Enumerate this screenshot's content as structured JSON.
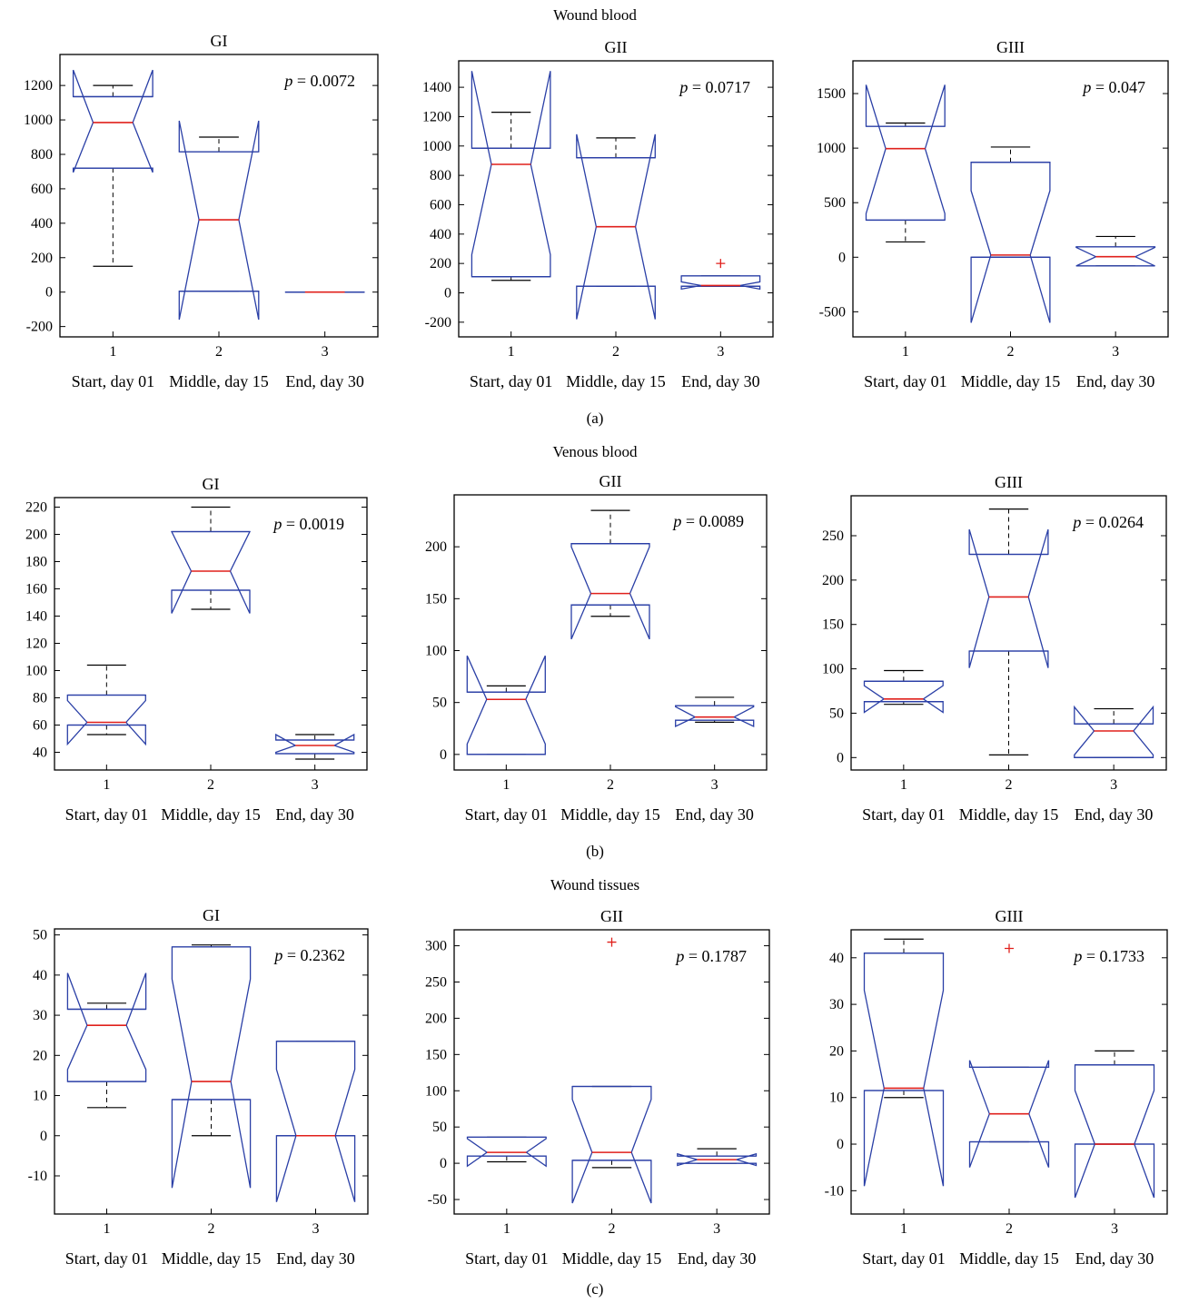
{
  "colors": {
    "box": "#2a3fa6",
    "median": "#e0201c",
    "whisker": "#000000",
    "outlier": "#e0201c",
    "axis": "#000000"
  },
  "x_categories": [
    "Start, day 01",
    "Middle, day 15",
    "End, day 30"
  ],
  "x_ticks": [
    "1",
    "2",
    "3"
  ],
  "sections": [
    {
      "title": "Wound blood",
      "label": "(a)"
    },
    {
      "title": "Venous blood",
      "label": "(b)"
    },
    {
      "title": "Wound tissues",
      "label": "(c)"
    }
  ],
  "chart_data": [
    {
      "type": "boxplot",
      "section": "Wound blood",
      "title": "GI",
      "p_label": "p",
      "p_value": "= 0.0072",
      "ylim": [
        -260,
        1380
      ],
      "yticks": [
        -200,
        0,
        200,
        400,
        600,
        800,
        1000,
        1200
      ],
      "boxes": [
        {
          "q1": 720,
          "median": 985,
          "q3": 1135,
          "notch_lo": 695,
          "notch_hi": 1290,
          "whisker_lo": 150,
          "whisker_hi": 1200,
          "outliers": []
        },
        {
          "q1": 5,
          "median": 420,
          "q3": 815,
          "notch_lo": -160,
          "notch_hi": 995,
          "whisker_lo": 5,
          "whisker_hi": 900,
          "outliers": []
        },
        {
          "q1": 0,
          "median": 0,
          "q3": 0,
          "notch_lo": 0,
          "notch_hi": 0,
          "whisker_lo": 0,
          "whisker_hi": 0,
          "outliers": []
        }
      ]
    },
    {
      "type": "boxplot",
      "section": "Wound blood",
      "title": "GII",
      "p_label": "p",
      "p_value": "= 0.0717",
      "ylim": [
        -300,
        1580
      ],
      "yticks": [
        -200,
        0,
        200,
        400,
        600,
        800,
        1000,
        1200,
        1400
      ],
      "boxes": [
        {
          "q1": 110,
          "median": 875,
          "q3": 985,
          "notch_lo": 260,
          "notch_hi": 1510,
          "whisker_lo": 85,
          "whisker_hi": 1230,
          "outliers": []
        },
        {
          "q1": 45,
          "median": 450,
          "q3": 920,
          "notch_lo": -180,
          "notch_hi": 1080,
          "whisker_lo": 45,
          "whisker_hi": 1055,
          "outliers": []
        },
        {
          "q1": 45,
          "median": 50,
          "q3": 115,
          "notch_lo": 25,
          "notch_hi": 75,
          "whisker_lo": 45,
          "whisker_hi": 115,
          "outliers": [
            200
          ]
        }
      ]
    },
    {
      "type": "boxplot",
      "section": "Wound blood",
      "title": "GIII",
      "p_label": "p",
      "p_value": "= 0.047",
      "ylim": [
        -730,
        1800
      ],
      "yticks": [
        -500,
        0,
        500,
        1000,
        1500
      ],
      "boxes": [
        {
          "q1": 340,
          "median": 995,
          "q3": 1200,
          "notch_lo": 400,
          "notch_hi": 1580,
          "whisker_lo": 140,
          "whisker_hi": 1230,
          "outliers": []
        },
        {
          "q1": 0,
          "median": 20,
          "q3": 870,
          "notch_lo": -600,
          "notch_hi": 610,
          "whisker_lo": 0,
          "whisker_hi": 1010,
          "outliers": []
        },
        {
          "q1": -80,
          "median": 5,
          "q3": 95,
          "notch_lo": -80,
          "notch_hi": 90,
          "whisker_lo": -80,
          "whisker_hi": 190,
          "outliers": []
        }
      ]
    },
    {
      "type": "boxplot",
      "section": "Venous blood",
      "title": "GI",
      "p_label": "p",
      "p_value": "= 0.0019",
      "ylim": [
        27,
        227
      ],
      "yticks": [
        40,
        60,
        80,
        100,
        120,
        140,
        160,
        180,
        200,
        220
      ],
      "boxes": [
        {
          "q1": 60,
          "median": 62,
          "q3": 82,
          "notch_lo": 46,
          "notch_hi": 78,
          "whisker_lo": 53,
          "whisker_hi": 104,
          "outliers": []
        },
        {
          "q1": 159,
          "median": 173,
          "q3": 202,
          "notch_lo": 142,
          "notch_hi": 202,
          "whisker_lo": 145,
          "whisker_hi": 220,
          "outliers": []
        },
        {
          "q1": 39,
          "median": 45,
          "q3": 49,
          "notch_lo": 40,
          "notch_hi": 53,
          "whisker_lo": 35,
          "whisker_hi": 53,
          "outliers": []
        }
      ]
    },
    {
      "type": "boxplot",
      "section": "Venous blood",
      "title": "GII",
      "p_label": "p",
      "p_value": "= 0.0089",
      "ylim": [
        -15,
        250
      ],
      "yticks": [
        0,
        50,
        100,
        150,
        200
      ],
      "boxes": [
        {
          "q1": 0,
          "median": 53,
          "q3": 60,
          "notch_lo": 10,
          "notch_hi": 95,
          "whisker_lo": 0,
          "whisker_hi": 66,
          "outliers": []
        },
        {
          "q1": 144,
          "median": 155,
          "q3": 203,
          "notch_lo": 111,
          "notch_hi": 200,
          "whisker_lo": 133,
          "whisker_hi": 235,
          "outliers": []
        },
        {
          "q1": 33,
          "median": 36,
          "q3": 47,
          "notch_lo": 27,
          "notch_hi": 46,
          "whisker_lo": 31,
          "whisker_hi": 55,
          "outliers": []
        }
      ]
    },
    {
      "type": "boxplot",
      "section": "Venous blood",
      "title": "GIII",
      "p_label": "p",
      "p_value": "= 0.0264",
      "ylim": [
        -14,
        295
      ],
      "yticks": [
        0,
        50,
        100,
        150,
        200,
        250
      ],
      "boxes": [
        {
          "q1": 63,
          "median": 66,
          "q3": 86,
          "notch_lo": 51,
          "notch_hi": 81,
          "whisker_lo": 60,
          "whisker_hi": 98,
          "outliers": []
        },
        {
          "q1": 120,
          "median": 181,
          "q3": 229,
          "notch_lo": 101,
          "notch_hi": 257,
          "whisker_lo": 3,
          "whisker_hi": 280,
          "outliers": []
        },
        {
          "q1": 0,
          "median": 30,
          "q3": 38,
          "notch_lo": 3,
          "notch_hi": 57,
          "whisker_lo": 0,
          "whisker_hi": 55,
          "outliers": []
        }
      ]
    },
    {
      "type": "boxplot",
      "section": "Wound tissues",
      "title": "GI",
      "p_label": "p",
      "p_value": "= 0.2362",
      "ylim": [
        -19.5,
        51.5
      ],
      "yticks": [
        -10,
        0,
        10,
        20,
        30,
        40,
        50
      ],
      "boxes": [
        {
          "q1": 13.5,
          "median": 27.5,
          "q3": 31.5,
          "notch_lo": 16.5,
          "notch_hi": 40.5,
          "whisker_lo": 7,
          "whisker_hi": 33,
          "outliers": []
        },
        {
          "q1": 9,
          "median": 13.5,
          "q3": 47,
          "notch_lo": -13,
          "notch_hi": 39,
          "whisker_lo": 0,
          "whisker_hi": 47.5,
          "outliers": []
        },
        {
          "q1": 0,
          "median": 0,
          "q3": 23.5,
          "notch_lo": -16.5,
          "notch_hi": 16.5,
          "whisker_lo": 0,
          "whisker_hi": 23.5,
          "outliers": []
        }
      ]
    },
    {
      "type": "boxplot",
      "section": "Wound tissues",
      "title": "GII",
      "p_label": "p",
      "p_value": "= 0.1787",
      "ylim": [
        -70,
        322
      ],
      "yticks": [
        -50,
        0,
        50,
        100,
        150,
        200,
        250,
        300
      ],
      "boxes": [
        {
          "q1": 10,
          "median": 15,
          "q3": 36,
          "notch_lo": -4,
          "notch_hi": 34,
          "whisker_lo": 2,
          "whisker_hi": 36,
          "outliers": []
        },
        {
          "q1": 4,
          "median": 15,
          "q3": 106,
          "notch_lo": -55,
          "notch_hi": 88,
          "whisker_lo": -6,
          "whisker_hi": 106,
          "outliers": [
            305
          ]
        },
        {
          "q1": 0,
          "median": 5,
          "q3": 10,
          "notch_lo": -3,
          "notch_hi": 13,
          "whisker_lo": 0,
          "whisker_hi": 20,
          "outliers": []
        }
      ]
    },
    {
      "type": "boxplot",
      "section": "Wound tissues",
      "title": "GIII",
      "p_label": "p",
      "p_value": "= 0.1733",
      "ylim": [
        -15,
        46
      ],
      "yticks": [
        -10,
        0,
        10,
        20,
        30,
        40
      ],
      "boxes": [
        {
          "q1": 11.5,
          "median": 12,
          "q3": 41,
          "notch_lo": -9,
          "notch_hi": 33,
          "whisker_lo": 10,
          "whisker_hi": 44,
          "outliers": []
        },
        {
          "q1": 0.5,
          "median": 6.5,
          "q3": 16.5,
          "notch_lo": -5,
          "notch_hi": 18,
          "whisker_lo": 0.5,
          "whisker_hi": 16.5,
          "outliers": [
            42
          ]
        },
        {
          "q1": 0,
          "median": 0,
          "q3": 17,
          "notch_lo": -11.5,
          "notch_hi": 11.5,
          "whisker_lo": 0,
          "whisker_hi": 20,
          "outliers": []
        }
      ]
    }
  ]
}
